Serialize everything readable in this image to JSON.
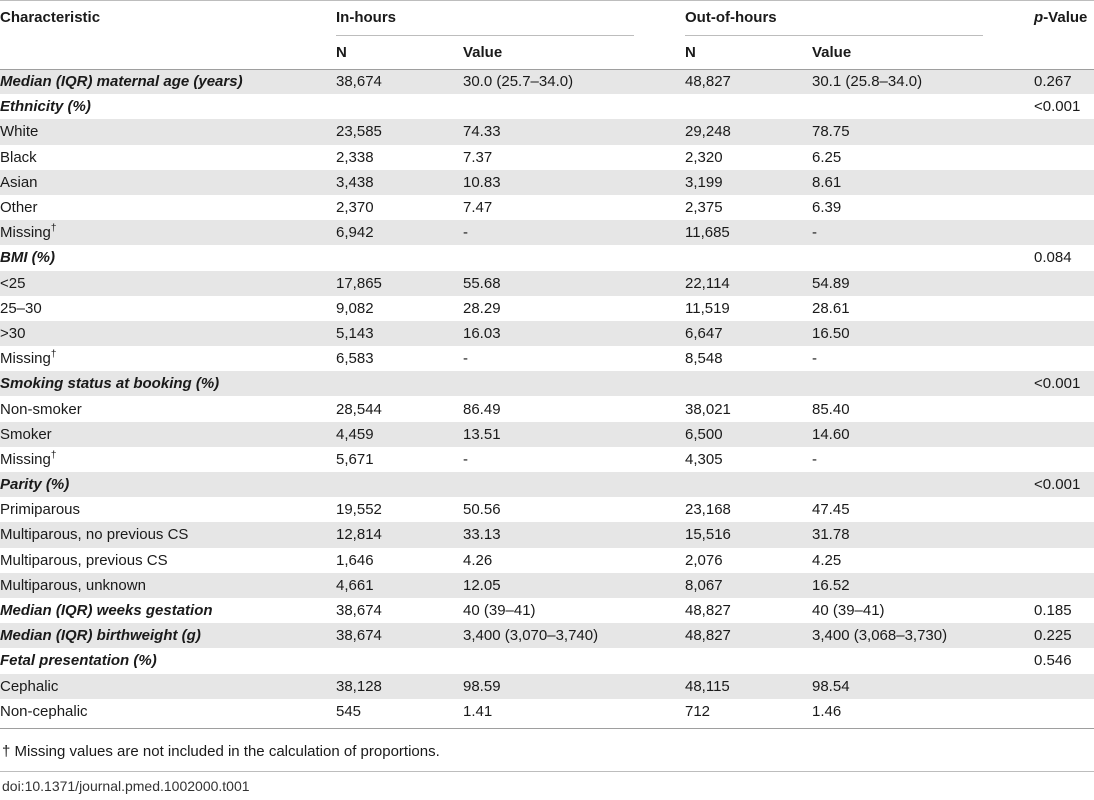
{
  "header": {
    "characteristic": "Characteristic",
    "in_hours": "In-hours",
    "out_of_hours": "Out-of-hours",
    "p_value_italic": "p",
    "p_value_rest": "-Value",
    "n_label": "N",
    "value_label": "Value"
  },
  "rows": [
    {
      "label": "Median (IQR) maternal age (years)",
      "section": true,
      "sup": "",
      "n1": "38,674",
      "v1": "30.0 (25.7–34.0)",
      "n2": "48,827",
      "v2": "30.1 (25.8–34.0)",
      "p": "0.267"
    },
    {
      "label": "Ethnicity (%)",
      "section": true,
      "sup": "",
      "n1": "",
      "v1": "",
      "n2": "",
      "v2": "",
      "p": "<0.001"
    },
    {
      "label": "White",
      "section": false,
      "sup": "",
      "n1": "23,585",
      "v1": "74.33",
      "n2": "29,248",
      "v2": "78.75",
      "p": ""
    },
    {
      "label": "Black",
      "section": false,
      "sup": "",
      "n1": "2,338",
      "v1": "7.37",
      "n2": "2,320",
      "v2": "6.25",
      "p": ""
    },
    {
      "label": "Asian",
      "section": false,
      "sup": "",
      "n1": "3,438",
      "v1": "10.83",
      "n2": "3,199",
      "v2": "8.61",
      "p": ""
    },
    {
      "label": "Other",
      "section": false,
      "sup": "",
      "n1": "2,370",
      "v1": "7.47",
      "n2": "2,375",
      "v2": "6.39",
      "p": ""
    },
    {
      "label": "Missing",
      "section": false,
      "sup": "†",
      "n1": "6,942",
      "v1": "-",
      "n2": "11,685",
      "v2": "-",
      "p": ""
    },
    {
      "label": "BMI (%)",
      "section": true,
      "sup": "",
      "n1": "",
      "v1": "",
      "n2": "",
      "v2": "",
      "p": "0.084"
    },
    {
      "label": "<25",
      "section": false,
      "sup": "",
      "n1": "17,865",
      "v1": "55.68",
      "n2": "22,114",
      "v2": "54.89",
      "p": ""
    },
    {
      "label": "25–30",
      "section": false,
      "sup": "",
      "n1": "9,082",
      "v1": "28.29",
      "n2": "11,519",
      "v2": "28.61",
      "p": ""
    },
    {
      "label": ">30",
      "section": false,
      "sup": "",
      "n1": "5,143",
      "v1": "16.03",
      "n2": "6,647",
      "v2": "16.50",
      "p": ""
    },
    {
      "label": "Missing",
      "section": false,
      "sup": "†",
      "n1": "6,583",
      "v1": "-",
      "n2": "8,548",
      "v2": "-",
      "p": ""
    },
    {
      "label": "Smoking status at booking (%)",
      "section": true,
      "sup": "",
      "n1": "",
      "v1": "",
      "n2": "",
      "v2": "",
      "p": "<0.001"
    },
    {
      "label": "Non-smoker",
      "section": false,
      "sup": "",
      "n1": "28,544",
      "v1": "86.49",
      "n2": "38,021",
      "v2": "85.40",
      "p": ""
    },
    {
      "label": "Smoker",
      "section": false,
      "sup": "",
      "n1": "4,459",
      "v1": "13.51",
      "n2": "6,500",
      "v2": "14.60",
      "p": ""
    },
    {
      "label": "Missing",
      "section": false,
      "sup": "†",
      "n1": "5,671",
      "v1": "-",
      "n2": "4,305",
      "v2": "-",
      "p": ""
    },
    {
      "label": "Parity (%)",
      "section": true,
      "sup": "",
      "n1": "",
      "v1": "",
      "n2": "",
      "v2": "",
      "p": "<0.001"
    },
    {
      "label": "Primiparous",
      "section": false,
      "sup": "",
      "n1": "19,552",
      "v1": "50.56",
      "n2": "23,168",
      "v2": "47.45",
      "p": ""
    },
    {
      "label": "Multiparous, no previous CS",
      "section": false,
      "sup": "",
      "n1": "12,814",
      "v1": "33.13",
      "n2": "15,516",
      "v2": "31.78",
      "p": ""
    },
    {
      "label": "Multiparous, previous CS",
      "section": false,
      "sup": "",
      "n1": "1,646",
      "v1": "4.26",
      "n2": "2,076",
      "v2": "4.25",
      "p": ""
    },
    {
      "label": "Multiparous, unknown",
      "section": false,
      "sup": "",
      "n1": "4,661",
      "v1": "12.05",
      "n2": "8,067",
      "v2": "16.52",
      "p": ""
    },
    {
      "label": "Median (IQR) weeks gestation",
      "section": true,
      "sup": "",
      "n1": "38,674",
      "v1": "40 (39–41)",
      "n2": "48,827",
      "v2": "40 (39–41)",
      "p": "0.185"
    },
    {
      "label": "Median (IQR) birthweight (g)",
      "section": true,
      "sup": "",
      "n1": "38,674",
      "v1": "3,400 (3,070–3,740)",
      "n2": "48,827",
      "v2": "3,400 (3,068–3,730)",
      "p": "0.225"
    },
    {
      "label": "Fetal presentation (%)",
      "section": true,
      "sup": "",
      "n1": "",
      "v1": "",
      "n2": "",
      "v2": "",
      "p": "0.546"
    },
    {
      "label": "Cephalic",
      "section": false,
      "sup": "",
      "n1": "38,128",
      "v1": "98.59",
      "n2": "48,115",
      "v2": "98.54",
      "p": ""
    },
    {
      "label": "Non-cephalic",
      "section": false,
      "sup": "",
      "n1": "545",
      "v1": "1.41",
      "n2": "712",
      "v2": "1.46",
      "p": ""
    }
  ],
  "footnote": "† Missing values are not included in the calculation of proportions.",
  "doi": "doi:10.1371/journal.pmed.1002000.t001"
}
